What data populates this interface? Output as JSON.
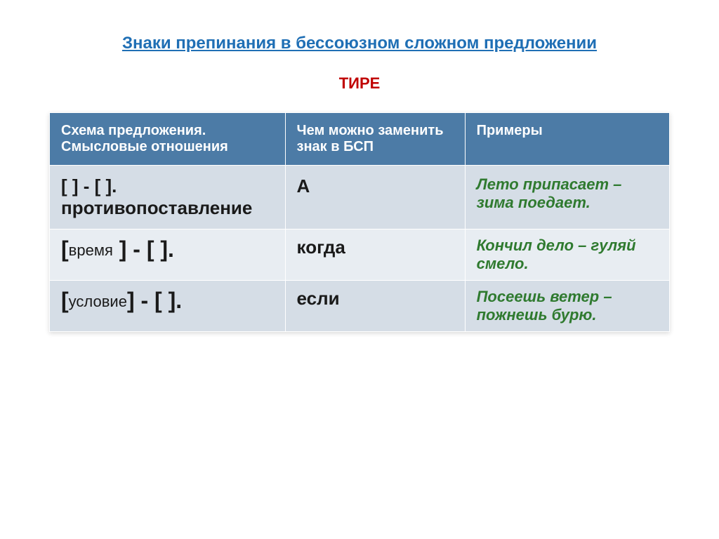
{
  "title": {
    "text": "Знаки препинания в бессоюзном сложном предложении",
    "color": "#1f6fb5",
    "fontsize": 24
  },
  "subtitle": {
    "text": "ТИРЕ",
    "color": "#c00000",
    "fontsize": 22
  },
  "table": {
    "header_bg": "#4c7ba6",
    "header_fg": "#ffffff",
    "header_fontsize": 20,
    "row_bgs": [
      "#d5dde6",
      "#e8edf2",
      "#d5dde6"
    ],
    "cell_fontsize": 26,
    "example_color": "#2f7a2f",
    "replace_color": "#1a1a1a",
    "schema_color": "#1a1a1a",
    "border_color": "#ffffff",
    "columns": [
      "Схема предложения. Смысловые отношения",
      "Чем можно заменить знак в БСП",
      "Примеры"
    ],
    "rows": [
      {
        "schema": "[ ] - [ ].",
        "relation": "противопоставление",
        "replace": "А",
        "example": "Лето припасает – зима поедает."
      },
      {
        "schema_open": "[",
        "schema_inner": "время",
        "schema_rest": " ] - [ ].",
        "replace": "когда",
        "example": "Кончил дело – гуляй смело."
      },
      {
        "schema_open": "[",
        "schema_inner": "условие",
        "schema_rest": "] - [ ].",
        "replace": "если",
        "example": "Посеешь ветер – пожнешь бурю."
      }
    ]
  },
  "style": {
    "page_bg": "#ffffff"
  }
}
